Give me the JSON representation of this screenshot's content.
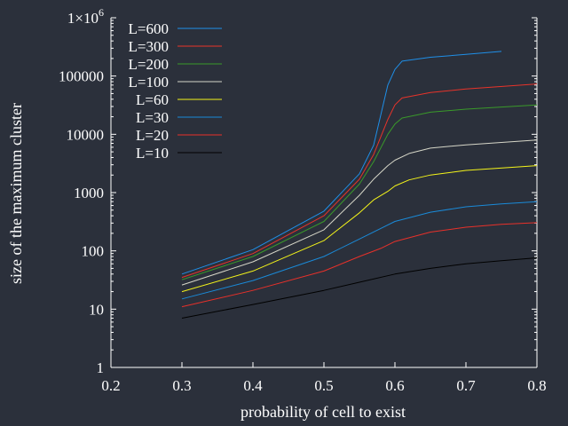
{
  "chart_data": {
    "type": "line",
    "xlabel": "probability of cell to exist",
    "ylabel": "size of the maximum cluster",
    "xlim": [
      0.2,
      0.8
    ],
    "ylim": [
      1,
      1000000
    ],
    "yscale": "log",
    "grid": false,
    "legend_position": "top-left",
    "x_ticks": [
      0.2,
      0.3,
      0.4,
      0.5,
      0.6,
      0.7,
      0.8
    ],
    "x_tick_labels": [
      "0.2",
      "0.3",
      "0.4",
      "0.5",
      "0.6",
      "0.7",
      "0.8"
    ],
    "y_ticks": [
      1,
      10,
      100,
      1000,
      10000,
      100000,
      1000000
    ],
    "y_tick_labels": [
      "1",
      "10",
      "100",
      "1000",
      "10000",
      "100000",
      "1×10^6"
    ],
    "series": [
      {
        "name": "L=600",
        "color": "#1f8fe8",
        "x": [
          0.3,
          0.4,
          0.5,
          0.55,
          0.57,
          0.59,
          0.6,
          0.61,
          0.65,
          0.7,
          0.75
        ],
        "values": [
          40,
          105,
          480,
          2100,
          6500,
          70000,
          130000,
          180000,
          210000,
          235000,
          265000
        ]
      },
      {
        "name": "L=300",
        "color": "#e8332a",
        "x": [
          0.3,
          0.4,
          0.5,
          0.55,
          0.57,
          0.59,
          0.6,
          0.61,
          0.65,
          0.7,
          0.8
        ],
        "values": [
          35,
          90,
          400,
          1700,
          4500,
          18000,
          32000,
          42000,
          52000,
          60000,
          73000
        ]
      },
      {
        "name": "L=200",
        "color": "#3a9a2a",
        "x": [
          0.3,
          0.4,
          0.5,
          0.55,
          0.57,
          0.59,
          0.6,
          0.61,
          0.65,
          0.7,
          0.8
        ],
        "values": [
          32,
          80,
          320,
          1400,
          3400,
          10000,
          15000,
          19000,
          24000,
          27000,
          32000
        ]
      },
      {
        "name": "L=100",
        "color": "#d6d6c8",
        "x": [
          0.3,
          0.4,
          0.5,
          0.55,
          0.57,
          0.59,
          0.6,
          0.62,
          0.65,
          0.7,
          0.8
        ],
        "values": [
          26,
          65,
          230,
          900,
          1700,
          2900,
          3600,
          4700,
          5800,
          6600,
          8000
        ]
      },
      {
        "name": "L=60",
        "color": "#f4f41a",
        "x": [
          0.3,
          0.4,
          0.5,
          0.55,
          0.57,
          0.59,
          0.6,
          0.62,
          0.65,
          0.7,
          0.8
        ],
        "values": [
          20,
          45,
          150,
          450,
          750,
          1050,
          1300,
          1650,
          2000,
          2400,
          2900
        ]
      },
      {
        "name": "L=30",
        "color": "#1a8ad8",
        "x": [
          0.3,
          0.4,
          0.5,
          0.55,
          0.6,
          0.65,
          0.7,
          0.75,
          0.8
        ],
        "values": [
          15,
          31,
          80,
          160,
          320,
          460,
          570,
          640,
          700
        ]
      },
      {
        "name": "L=20",
        "color": "#e8302a",
        "x": [
          0.3,
          0.4,
          0.5,
          0.55,
          0.58,
          0.6,
          0.65,
          0.7,
          0.75,
          0.8
        ],
        "values": [
          11,
          21,
          45,
          80,
          110,
          145,
          210,
          255,
          285,
          305
        ]
      },
      {
        "name": "L=10",
        "color": "#000000",
        "x": [
          0.3,
          0.4,
          0.5,
          0.55,
          0.6,
          0.65,
          0.7,
          0.75,
          0.8
        ],
        "values": [
          7,
          12,
          21,
          29,
          40,
          50,
          60,
          68,
          76
        ]
      }
    ]
  }
}
